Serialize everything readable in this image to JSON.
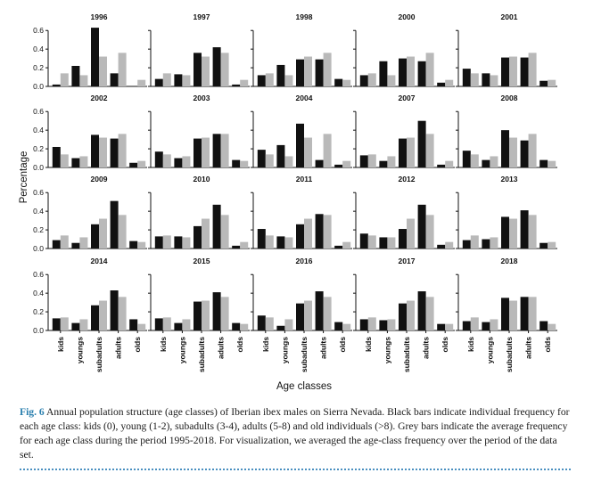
{
  "chart_data": {
    "type": "bar",
    "ylabel": "Percentage",
    "xlabel": "Age classes",
    "categories": [
      "kids",
      "youngs",
      "subadults",
      "adults",
      "olds"
    ],
    "ylim": [
      0,
      0.65
    ],
    "yticks": [
      "0.0",
      "0.2",
      "0.4",
      "0.6"
    ],
    "colors": {
      "individual": "#111111",
      "average": "#b9b9b9"
    },
    "average": [
      0.14,
      0.12,
      0.32,
      0.36,
      0.07
    ],
    "panels": [
      {
        "title": "1996",
        "values": [
          0.02,
          0.22,
          0.63,
          0.14,
          0.0
        ]
      },
      {
        "title": "1997",
        "values": [
          0.08,
          0.13,
          0.36,
          0.42,
          0.02
        ]
      },
      {
        "title": "1998",
        "values": [
          0.12,
          0.23,
          0.29,
          0.29,
          0.08
        ]
      },
      {
        "title": "2000",
        "values": [
          0.12,
          0.27,
          0.3,
          0.27,
          0.04
        ]
      },
      {
        "title": "2001",
        "values": [
          0.19,
          0.14,
          0.31,
          0.31,
          0.06
        ]
      },
      {
        "title": "2002",
        "values": [
          0.22,
          0.1,
          0.35,
          0.31,
          0.05
        ]
      },
      {
        "title": "2003",
        "values": [
          0.17,
          0.1,
          0.31,
          0.36,
          0.08
        ]
      },
      {
        "title": "2004",
        "values": [
          0.19,
          0.24,
          0.47,
          0.08,
          0.03
        ]
      },
      {
        "title": "2007",
        "values": [
          0.13,
          0.07,
          0.31,
          0.5,
          0.03
        ]
      },
      {
        "title": "2008",
        "values": [
          0.18,
          0.08,
          0.4,
          0.29,
          0.08
        ]
      },
      {
        "title": "2009",
        "values": [
          0.09,
          0.06,
          0.26,
          0.51,
          0.08
        ]
      },
      {
        "title": "2010",
        "values": [
          0.13,
          0.13,
          0.24,
          0.47,
          0.03
        ]
      },
      {
        "title": "2011",
        "values": [
          0.21,
          0.13,
          0.26,
          0.37,
          0.03
        ]
      },
      {
        "title": "2012",
        "values": [
          0.16,
          0.12,
          0.21,
          0.47,
          0.04
        ]
      },
      {
        "title": "2013",
        "values": [
          0.09,
          0.1,
          0.34,
          0.41,
          0.06
        ]
      },
      {
        "title": "2014",
        "values": [
          0.13,
          0.08,
          0.27,
          0.43,
          0.12
        ]
      },
      {
        "title": "2015",
        "values": [
          0.13,
          0.08,
          0.31,
          0.41,
          0.08
        ]
      },
      {
        "title": "2016",
        "values": [
          0.16,
          0.05,
          0.29,
          0.42,
          0.09
        ]
      },
      {
        "title": "2017",
        "values": [
          0.12,
          0.11,
          0.29,
          0.42,
          0.07
        ]
      },
      {
        "title": "2018",
        "values": [
          0.1,
          0.09,
          0.35,
          0.36,
          0.1
        ]
      }
    ]
  },
  "caption": {
    "figure_label": "Fig. 6",
    "text": "Annual population structure (age classes) of Iberian ibex males on Sierra Nevada. Black bars indicate individual frequency for each age class: kids (0), young (1-2), subadults (3-4), adults (5-8) and old individuals (>8). Grey bars indicate the average frequency for each age class during the period 1995-2018. For visualization, we averaged the age-class frequency over the period of the data set."
  }
}
